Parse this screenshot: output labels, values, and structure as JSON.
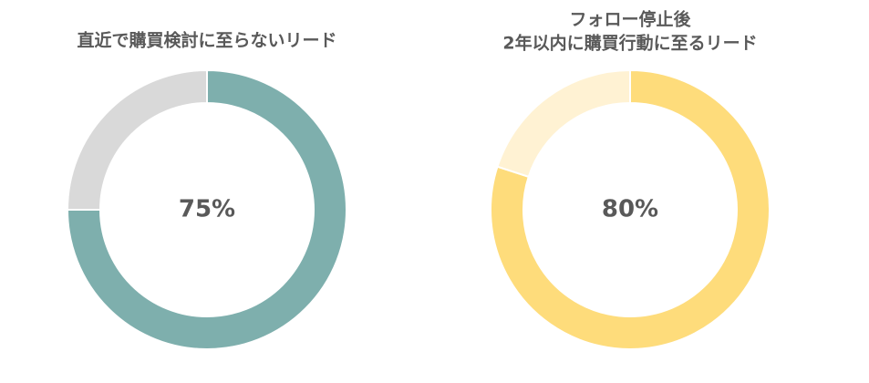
{
  "chart_data": [
    {
      "type": "donut",
      "title": [
        "直近で購買検討に至らないリード"
      ],
      "categories": [
        null,
        null
      ],
      "values": [
        75,
        25
      ],
      "colors": [
        "#7eafad",
        "#d9d9d9"
      ],
      "center_label": "75%"
    },
    {
      "type": "donut",
      "title": [
        "フォロー停止後",
        "2年以内に購買行動に至るリード"
      ],
      "categories": [
        null,
        null
      ],
      "values": [
        80,
        20
      ],
      "colors": [
        "#fedc7b",
        "#fff2d3"
      ],
      "center_label": "80%"
    }
  ]
}
